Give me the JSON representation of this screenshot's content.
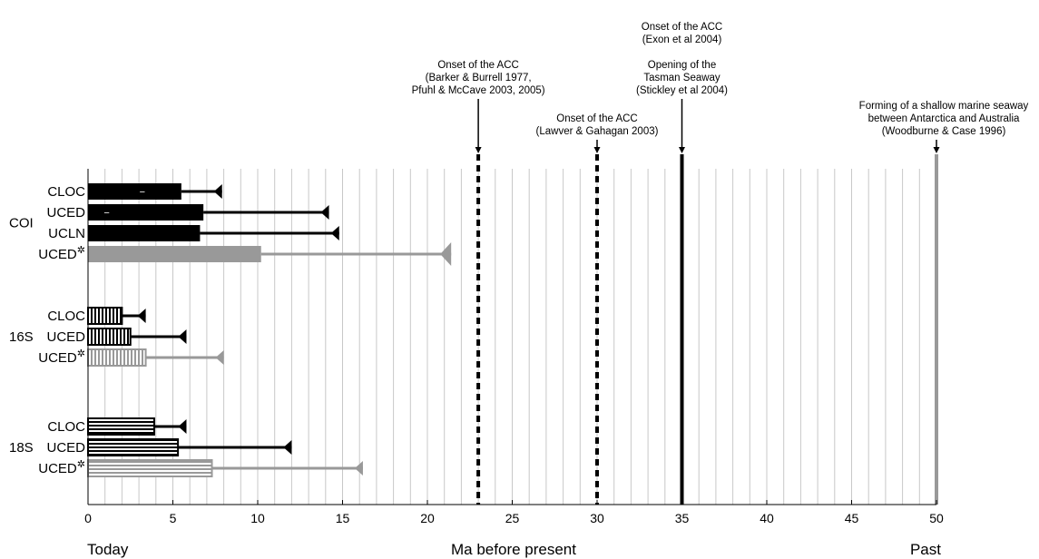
{
  "chart_data": {
    "type": "bar",
    "orientation": "horizontal",
    "xlabel": "Ma before present",
    "x_start_label": "Today",
    "x_end_label": "Past",
    "xlim": [
      0,
      50
    ],
    "xticks": [
      0,
      5,
      10,
      15,
      20,
      25,
      30,
      35,
      40,
      45,
      50
    ],
    "minor_grid_step": 1,
    "grid": true,
    "groups": [
      {
        "name": "COI",
        "bars": [
          {
            "label": "CLOC",
            "value": 5.5,
            "whisker": 7.9,
            "fill": "solid",
            "color": "#000000",
            "marker": "−"
          },
          {
            "label": "UCED",
            "value": 6.8,
            "whisker": 14.2,
            "fill": "solid",
            "color": "#000000",
            "marker": "−"
          },
          {
            "label": "UCLN",
            "value": 6.6,
            "whisker": 14.8,
            "fill": "solid",
            "color": "#000000"
          },
          {
            "label": "UCED",
            "superscript": "✲",
            "value": 10.2,
            "whisker": 21.4,
            "fill": "solid",
            "color": "#999999"
          }
        ]
      },
      {
        "name": "16S",
        "bars": [
          {
            "label": "CLOC",
            "value": 2.0,
            "whisker": 3.4,
            "fill": "vertical-stripes",
            "color": "#000000"
          },
          {
            "label": "UCED",
            "value": 2.5,
            "whisker": 5.8,
            "fill": "vertical-stripes",
            "color": "#000000"
          },
          {
            "label": "UCED",
            "superscript": "✲",
            "value": 3.4,
            "whisker": 8.0,
            "fill": "vertical-stripes",
            "color": "#999999"
          }
        ]
      },
      {
        "name": "18S",
        "bars": [
          {
            "label": "CLOC",
            "value": 3.9,
            "whisker": 5.8,
            "fill": "horizontal-stripes",
            "color": "#000000"
          },
          {
            "label": "UCED",
            "value": 5.3,
            "whisker": 12.0,
            "fill": "horizontal-stripes",
            "color": "#000000"
          },
          {
            "label": "UCED",
            "superscript": "✲",
            "value": 7.3,
            "whisker": 16.2,
            "fill": "horizontal-stripes",
            "color": "#999999"
          }
        ]
      }
    ],
    "events": [
      {
        "x": 23.0,
        "style": "dashed",
        "color": "#000000",
        "text": [
          "Onset of the ACC",
          "(Barker & Burrell 1977,",
          "Pfuhl & McCave 2003, 2005)"
        ]
      },
      {
        "x": 30.0,
        "style": "dashed",
        "color": "#000000",
        "text": [
          "Onset of the ACC",
          "(Lawver & Gahagan 2003)"
        ]
      },
      {
        "x": 35.0,
        "style": "solid",
        "color": "#000000",
        "text": [
          "Onset of the ACC",
          "(Exon et al 2004)",
          "",
          "Opening of the",
          "Tasman Seaway",
          "(Stickley et al 2004)"
        ]
      },
      {
        "x": 50.0,
        "style": "solid",
        "color": "#999999",
        "text": [
          "Forming of a shallow marine seaway",
          "between Antarctica and Australia",
          "(Woodburne & Case 1996)"
        ]
      }
    ]
  }
}
